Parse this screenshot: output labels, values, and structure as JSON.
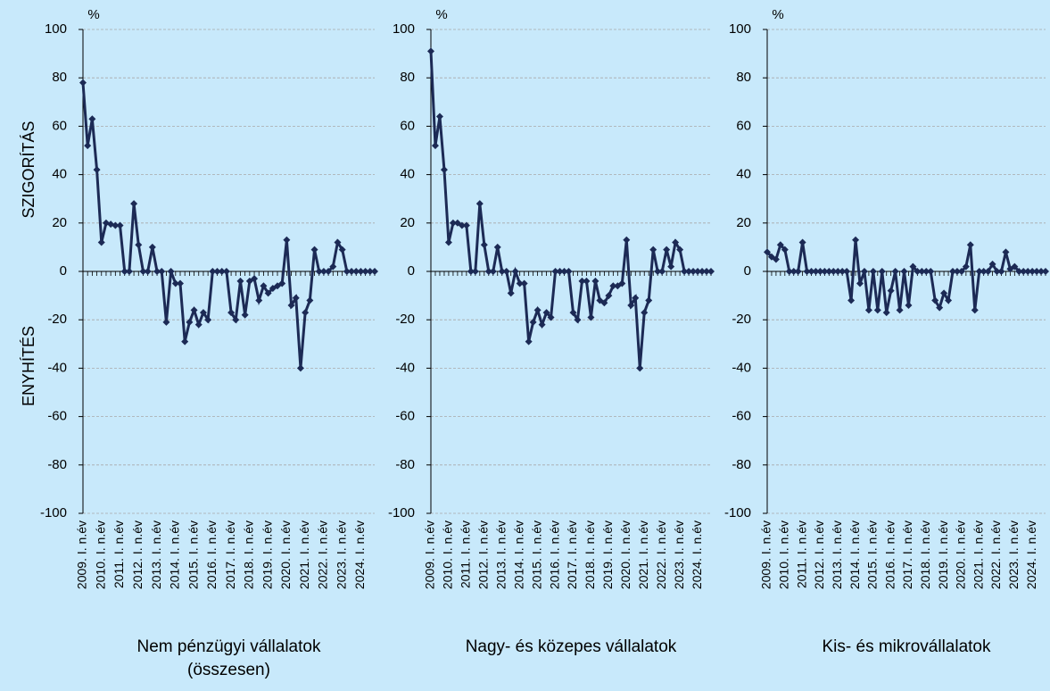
{
  "chart_data": [
    {
      "type": "line",
      "title": "Nem pénzügyi vállalatok (összesen)",
      "y_label": "%",
      "annotations": [
        "SZIGORÍTÁS",
        "ENYHÍTÉS"
      ],
      "color": "#1c2a55",
      "categories": [
        "2009. I. n.év",
        null,
        null,
        null,
        "2010. I. n.év",
        null,
        null,
        null,
        "2011. I. n.év",
        null,
        null,
        null,
        "2012. I. n.év",
        null,
        null,
        null,
        "2013. I. n.év",
        null,
        null,
        null,
        "2014. I. n.év",
        null,
        null,
        null,
        "2015. I. n.év",
        null,
        null,
        null,
        "2016. I. n.év",
        null,
        null,
        null,
        "2017. I. n.év",
        null,
        null,
        null,
        "2018. I. n.év",
        null,
        null,
        null,
        "2019. I. n.év",
        null,
        null,
        null,
        "2020. I. n.év",
        null,
        null,
        null,
        "2021. I. n.év",
        null,
        null,
        null,
        "2022. I. n.év",
        null,
        null,
        null,
        "2023. I. n.év",
        null,
        null,
        null,
        "2024. I. n.év",
        null,
        null,
        null
      ],
      "values": [
        78,
        52,
        63,
        42,
        12,
        20,
        19.5,
        19,
        19,
        0,
        0,
        28,
        11,
        0,
        0,
        10,
        0,
        0,
        -21,
        0,
        -5,
        -5,
        -29,
        -21,
        -16,
        -22,
        -17,
        -20,
        0,
        0,
        0,
        0,
        -17,
        -20,
        -4,
        -18,
        -4,
        -3,
        -12,
        -6,
        -9,
        -7,
        -6,
        -5,
        13,
        -14,
        -11,
        -40,
        -17,
        -12,
        9,
        0,
        0,
        0,
        2,
        12,
        9,
        0,
        0,
        0,
        0,
        0,
        0,
        0
      ],
      "ylim": [
        -100,
        100
      ],
      "yticks": [
        -100,
        -80,
        -60,
        -40,
        -20,
        0,
        20,
        40,
        60,
        80,
        100
      ],
      "grid": true
    },
    {
      "type": "line",
      "title": "Nagy- és közepes vállalatok",
      "y_label": "%",
      "color": "#1c2a55",
      "categories": [
        "2009. I. n.év",
        null,
        null,
        null,
        "2010. I. n.év",
        null,
        null,
        null,
        "2011. I. n.év",
        null,
        null,
        null,
        "2012. I. n.év",
        null,
        null,
        null,
        "2013. I. n.év",
        null,
        null,
        null,
        "2014. I. n.év",
        null,
        null,
        null,
        "2015. I. n.év",
        null,
        null,
        null,
        "2016. I. n.év",
        null,
        null,
        null,
        "2017. I. n.év",
        null,
        null,
        null,
        "2018. I. n.év",
        null,
        null,
        null,
        "2019. I. n.év",
        null,
        null,
        null,
        "2020. I. n.év",
        null,
        null,
        null,
        "2021. I. n.év",
        null,
        null,
        null,
        "2022. I. n.év",
        null,
        null,
        null,
        "2023. I. n.év",
        null,
        null,
        null,
        "2024. I. n.év",
        null,
        null,
        null
      ],
      "values": [
        91,
        52,
        64,
        42,
        12,
        20,
        20,
        19,
        19,
        0,
        0,
        28,
        11,
        0,
        0,
        10,
        0,
        0,
        -9,
        0,
        -5,
        -5,
        -29,
        -21,
        -16,
        -22,
        -17,
        -19,
        0,
        0,
        0,
        0,
        -17,
        -20,
        -4,
        -4,
        -19,
        -4,
        -12,
        -13,
        -10,
        -6,
        -6,
        -5,
        13,
        -14,
        -11,
        -40,
        -17,
        -12,
        9,
        0,
        0,
        9,
        2,
        12,
        9,
        0,
        0,
        0,
        0,
        0,
        0,
        0
      ],
      "ylim": [
        -100,
        100
      ],
      "yticks": [
        -100,
        -80,
        -60,
        -40,
        -20,
        0,
        20,
        40,
        60,
        80,
        100
      ],
      "grid": true
    },
    {
      "type": "line",
      "title": "Kis- és mikrovállalatok",
      "y_label": "%",
      "color": "#1c2a55",
      "categories": [
        "2009. I. n.év",
        null,
        null,
        null,
        "2010. I. n.év",
        null,
        null,
        null,
        "2011. I. n.év",
        null,
        null,
        null,
        "2012. I. n.év",
        null,
        null,
        null,
        "2013. I. n.év",
        null,
        null,
        null,
        "2014. I. n.év",
        null,
        null,
        null,
        "2015. I. n.év",
        null,
        null,
        null,
        "2016. I. n.év",
        null,
        null,
        null,
        "2017. I. n.év",
        null,
        null,
        null,
        "2018. I. n.év",
        null,
        null,
        null,
        "2019. I. n.év",
        null,
        null,
        null,
        "2020. I. n.év",
        null,
        null,
        null,
        "2021. I. n.év",
        null,
        null,
        null,
        "2022. I. n.év",
        null,
        null,
        null,
        "2023. I. n.év",
        null,
        null,
        null,
        "2024. I. n.év",
        null,
        null,
        null
      ],
      "values": [
        8,
        6,
        5,
        11,
        9,
        0,
        0,
        0,
        12,
        0,
        0,
        0,
        0,
        0,
        0,
        0,
        0,
        0,
        0,
        -12,
        13,
        -5,
        0,
        -16,
        0,
        -16,
        0,
        -17,
        -8,
        0,
        -16,
        0,
        -14,
        2,
        0,
        0,
        0,
        0,
        -12,
        -15,
        -9,
        -12,
        0,
        0,
        0,
        2,
        11,
        -16,
        0,
        0,
        0,
        3,
        0,
        0,
        8,
        1,
        2,
        0,
        0,
        0,
        0,
        0,
        0,
        0
      ],
      "ylim": [
        -100,
        100
      ],
      "yticks": [
        -100,
        -80,
        -60,
        -40,
        -20,
        0,
        20,
        40,
        60,
        80,
        100
      ],
      "grid": true
    }
  ]
}
